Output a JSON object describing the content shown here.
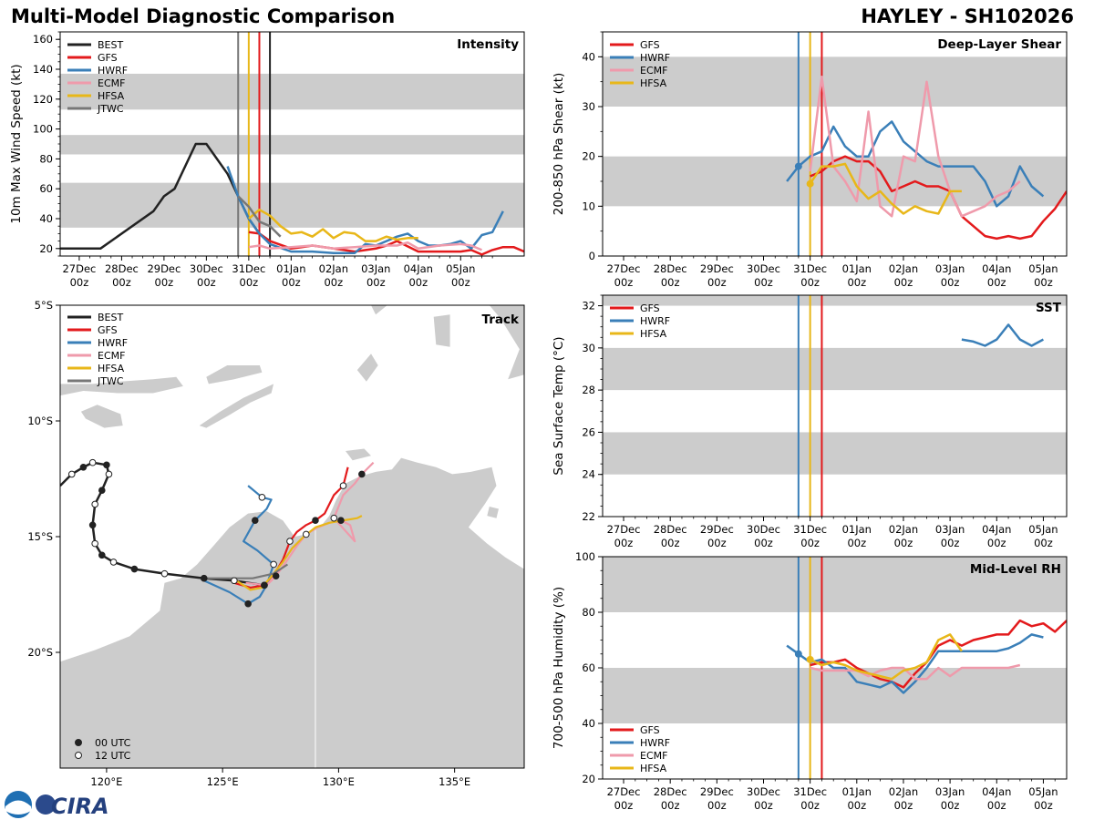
{
  "header": {
    "title": "Multi-Model Diagnostic Comparison",
    "storm": "HAYLEY - SH102026"
  },
  "colors": {
    "BEST": "#222222",
    "GFS": "#e31a1c",
    "HWRF": "#3a7fb8",
    "ECMF": "#ef9aab",
    "HFSA": "#e8b719",
    "JTWC": "#777777",
    "band": "#cccccc",
    "land": "#cccccc"
  },
  "time_ticks": [
    "27Dec\n00z",
    "28Dec\n00z",
    "29Dec\n00z",
    "30Dec\n00z",
    "31Dec\n00z",
    "01Jan\n00z",
    "02Jan\n00z",
    "03Jan\n00z",
    "04Jan\n00z",
    "05Jan\n00z"
  ],
  "chart_data": [
    {
      "id": "intensity",
      "type": "line",
      "title": "Intensity",
      "ylabel": "10m Max Wind Speed (kt)",
      "xlim": [
        -0.45,
        10.5
      ],
      "ylim": [
        15,
        165
      ],
      "yticks": [
        20,
        40,
        60,
        80,
        100,
        120,
        140,
        160
      ],
      "bands": [
        [
          34,
          64
        ],
        [
          83,
          96
        ],
        [
          113,
          137
        ]
      ],
      "vlines": [
        {
          "x": 3.75,
          "color": "#777777"
        },
        {
          "x": 4.0,
          "color": "#e8b719"
        },
        {
          "x": 4.25,
          "color": "#e31a1c"
        },
        {
          "x": 4.5,
          "color": "#222222"
        }
      ],
      "legend": [
        "BEST",
        "GFS",
        "HWRF",
        "ECMF",
        "HFSA",
        "JTWC"
      ],
      "series": [
        {
          "name": "BEST",
          "x": [
            -0.5,
            0.5,
            1.75,
            2,
            2.25,
            2.75,
            3,
            3.5,
            3.75,
            4,
            4.25,
            4.5
          ],
          "y": [
            20,
            20,
            45,
            55,
            60,
            90,
            90,
            70,
            55,
            40,
            30,
            25
          ]
        },
        {
          "name": "GFS",
          "x": [
            4,
            4.25,
            4.5,
            5,
            5.25,
            5.5,
            6,
            6.25,
            6.5,
            7,
            7.25,
            7.5,
            8,
            8.5,
            8.75,
            9,
            9.25,
            9.5,
            9.75,
            10,
            10.25,
            10.5
          ],
          "y": [
            31,
            30,
            25,
            20,
            21,
            22,
            20,
            19,
            18,
            20,
            22,
            25,
            18,
            18,
            18,
            18,
            19,
            16,
            19,
            21,
            21,
            18
          ]
        },
        {
          "name": "HWRF",
          "x": [
            3.5,
            3.75,
            4,
            4.25,
            4.5,
            5,
            5.5,
            6,
            6.25,
            6.5,
            6.75,
            7,
            7.25,
            7.5,
            7.75,
            8,
            8.25,
            8.5,
            8.75,
            9,
            9.25,
            9.5,
            9.75,
            10
          ],
          "y": [
            75,
            55,
            40,
            30,
            23,
            18,
            18,
            17,
            17,
            17,
            23,
            22,
            25,
            28,
            30,
            25,
            22,
            22,
            23,
            25,
            20,
            29,
            31,
            45
          ]
        },
        {
          "name": "ECMF",
          "x": [
            4,
            4.25,
            4.5,
            5,
            5.5,
            6,
            6.5,
            7,
            7.5,
            7.75,
            8,
            8.5,
            9,
            9.25,
            9.5
          ],
          "y": [
            21,
            22,
            20,
            21,
            22,
            20,
            21,
            22,
            22,
            24,
            20,
            22,
            23,
            22,
            19
          ]
        },
        {
          "name": "HFSA",
          "x": [
            4,
            4.25,
            4.5,
            4.75,
            5,
            5.25,
            5.5,
            5.75,
            6,
            6.25,
            6.5,
            6.75,
            7,
            7.25,
            7.5,
            7.75,
            8
          ],
          "y": [
            40,
            46,
            42,
            35,
            30,
            31,
            28,
            33,
            27,
            31,
            30,
            25,
            25,
            28,
            26,
            27,
            27
          ]
        },
        {
          "name": "JTWC",
          "x": [
            3.75,
            4,
            4.25,
            4.5,
            4.75
          ],
          "y": [
            55,
            48,
            38,
            35,
            28
          ]
        }
      ]
    },
    {
      "id": "shear",
      "type": "line",
      "title": "Deep-Layer Shear",
      "ylabel": "200-850 hPa Shear (kt)",
      "xlim": [
        -0.45,
        9.5
      ],
      "ylim": [
        0,
        45
      ],
      "yticks": [
        0,
        10,
        20,
        30,
        40
      ],
      "bands": [
        [
          10,
          20
        ],
        [
          30,
          40
        ]
      ],
      "vlines": [
        {
          "x": 3.75,
          "color": "#3a7fb8"
        },
        {
          "x": 4.0,
          "color": "#e8b719"
        },
        {
          "x": 4.25,
          "color": "#e31a1c"
        }
      ],
      "legend": [
        "GFS",
        "HWRF",
        "ECMF",
        "HFSA"
      ],
      "dots": [
        {
          "name": "HWRF",
          "x": 3.75,
          "y": 18
        },
        {
          "name": "HFSA",
          "x": 4.0,
          "y": 14.5
        }
      ],
      "series": [
        {
          "name": "GFS",
          "x": [
            4,
            4.25,
            4.5,
            4.75,
            5,
            5.25,
            5.5,
            5.75,
            6,
            6.25,
            6.5,
            6.75,
            7,
            7.25,
            7.5,
            7.75,
            8,
            8.25,
            8.5,
            8.75,
            9,
            9.25,
            9.5
          ],
          "y": [
            16,
            17,
            19,
            20,
            19,
            19,
            17,
            13,
            14,
            15,
            14,
            14,
            13,
            8,
            6,
            4,
            3.5,
            4,
            3.5,
            4,
            7,
            9.5,
            13
          ]
        },
        {
          "name": "HWRF",
          "x": [
            3.5,
            3.75,
            4,
            4.25,
            4.5,
            4.75,
            5,
            5.25,
            5.5,
            5.75,
            6,
            6.25,
            6.5,
            6.75,
            7,
            7.25,
            7.5,
            7.75,
            8,
            8.25,
            8.5,
            8.75,
            9
          ],
          "y": [
            15,
            18,
            20,
            21,
            26,
            22,
            20,
            20,
            25,
            27,
            23,
            21,
            19,
            18,
            18,
            18,
            18,
            15,
            10,
            12,
            18,
            14,
            12
          ]
        },
        {
          "name": "ECMF",
          "x": [
            4,
            4.25,
            4.5,
            4.75,
            5,
            5.25,
            5.5,
            5.75,
            6,
            6.25,
            6.5,
            6.75,
            7,
            7.25,
            7.5,
            7.75,
            8,
            8.25,
            8.5
          ],
          "y": [
            17,
            36,
            18,
            15,
            11,
            29,
            10,
            8,
            20,
            19,
            35,
            20,
            13,
            8,
            9,
            10,
            12,
            13,
            15
          ]
        },
        {
          "name": "HFSA",
          "x": [
            4,
            4.25,
            4.5,
            4.75,
            5,
            5.25,
            5.5,
            5.75,
            6,
            6.25,
            6.5,
            6.75,
            7,
            7.25
          ],
          "y": [
            14.5,
            18,
            18,
            18.5,
            14,
            11.5,
            13,
            10.5,
            8.5,
            10,
            9,
            8.5,
            13,
            13
          ]
        }
      ]
    },
    {
      "id": "sst",
      "type": "line",
      "title": "SST",
      "ylabel": "Sea Surface Temp (°C)",
      "xlim": [
        -0.45,
        9.5
      ],
      "ylim": [
        22,
        32.5
      ],
      "yticks": [
        22,
        24,
        26,
        28,
        30,
        32
      ],
      "bands": [
        [
          24,
          26
        ],
        [
          28,
          30
        ],
        [
          32,
          34
        ]
      ],
      "vlines": [
        {
          "x": 3.75,
          "color": "#3a7fb8"
        },
        {
          "x": 4.0,
          "color": "#e8b719"
        },
        {
          "x": 4.25,
          "color": "#e31a1c"
        }
      ],
      "legend": [
        "GFS",
        "HWRF",
        "HFSA"
      ],
      "dots": [],
      "series": [
        {
          "name": "HWRF",
          "x": [
            7.25,
            7.5,
            7.75,
            8,
            8.25,
            8.5,
            8.75,
            9
          ],
          "y": [
            30.4,
            30.3,
            30.1,
            30.4,
            31.1,
            30.4,
            30.1,
            30.4
          ]
        }
      ]
    },
    {
      "id": "rh",
      "type": "line",
      "title": "Mid-Level RH",
      "ylabel": "700-500 hPa Humidity (%)",
      "xlim": [
        -0.45,
        9.5
      ],
      "ylim": [
        20,
        100
      ],
      "yticks": [
        20,
        40,
        60,
        80,
        100
      ],
      "bands": [
        [
          40,
          60
        ],
        [
          80,
          100
        ]
      ],
      "vlines": [
        {
          "x": 3.75,
          "color": "#3a7fb8"
        },
        {
          "x": 4.0,
          "color": "#e8b719"
        },
        {
          "x": 4.25,
          "color": "#e31a1c"
        }
      ],
      "legend": [
        "GFS",
        "HWRF",
        "ECMF",
        "HFSA"
      ],
      "dots": [
        {
          "name": "HWRF",
          "x": 3.75,
          "y": 65
        },
        {
          "name": "HFSA",
          "x": 4.0,
          "y": 63
        }
      ],
      "series": [
        {
          "name": "GFS",
          "x": [
            4,
            4.25,
            4.5,
            4.75,
            5,
            5.25,
            5.5,
            5.75,
            6,
            6.25,
            6.5,
            6.75,
            7,
            7.25,
            7.5,
            7.75,
            8,
            8.25,
            8.5,
            8.75,
            9,
            9.25,
            9.5
          ],
          "y": [
            61,
            62,
            62,
            63,
            60,
            58,
            56,
            55,
            53,
            58,
            62,
            68,
            70,
            68,
            70,
            71,
            72,
            72,
            77,
            75,
            76,
            73,
            77
          ]
        },
        {
          "name": "HWRF",
          "x": [
            3.5,
            3.75,
            4,
            4.25,
            4.5,
            4.75,
            5,
            5.25,
            5.5,
            5.75,
            6,
            6.25,
            6.5,
            6.75,
            7,
            7.25,
            7.5,
            7.75,
            8,
            8.25,
            8.5,
            8.75,
            9
          ],
          "y": [
            68,
            65,
            62,
            63,
            60,
            60,
            55,
            54,
            53,
            55,
            51,
            55,
            60,
            66,
            66,
            66,
            66,
            66,
            66,
            67,
            69,
            72,
            71
          ]
        },
        {
          "name": "ECMF",
          "x": [
            4,
            4.25,
            4.5,
            4.75,
            5,
            5.25,
            5.5,
            5.75,
            6,
            6.25,
            6.5,
            6.75,
            7,
            7.25,
            7.5,
            7.75,
            8,
            8.25,
            8.5
          ],
          "y": [
            60,
            59,
            59,
            59,
            59,
            57,
            59,
            60,
            60,
            56,
            56,
            60,
            57,
            60,
            60,
            60,
            60,
            60,
            61
          ]
        },
        {
          "name": "HFSA",
          "x": [
            4,
            4.25,
            4.5,
            4.75,
            5,
            5.25,
            5.5,
            5.75,
            6,
            6.25,
            6.5,
            6.75,
            7,
            7.25
          ],
          "y": [
            63,
            61,
            62,
            61,
            59,
            58,
            57,
            56,
            59,
            60,
            62,
            70,
            72,
            66
          ]
        }
      ]
    },
    {
      "id": "track",
      "type": "scatter",
      "title": "Track",
      "xlim": [
        118,
        138
      ],
      "ylim": [
        -25,
        -5
      ],
      "xticks": [
        120,
        125,
        130,
        135
      ],
      "xticklabels": [
        "120°E",
        "125°E",
        "130°E",
        "135°E"
      ],
      "yticks": [
        -5,
        -10,
        -15,
        -20
      ],
      "yticklabels": [
        "5°S",
        "10°S",
        "15°S",
        "20°S"
      ],
      "legend": [
        "BEST",
        "GFS",
        "HWRF",
        "ECMF",
        "HFSA",
        "JTWC"
      ],
      "marker_legend": [
        "00 UTC",
        "12 UTC"
      ],
      "series": [
        {
          "name": "BEST",
          "lon": [
            118,
            118.5,
            119,
            119.4,
            120,
            120.1,
            119.8,
            119.5,
            119.4,
            119.5,
            119.8,
            120.3,
            121.2,
            122.5,
            124.2,
            125.5,
            126.8
          ],
          "lat": [
            -12.8,
            -12.3,
            -12,
            -11.8,
            -11.9,
            -12.3,
            -13,
            -13.6,
            -14.5,
            -15.3,
            -15.8,
            -16.1,
            -16.4,
            -16.6,
            -16.8,
            -16.9,
            -17.1
          ]
        },
        {
          "name": "GFS",
          "lon": [
            125.5,
            126.2,
            126.8,
            127.3,
            127.6,
            127.9,
            128.2,
            128.6,
            129,
            129.4,
            129.8,
            130.2,
            130.4
          ],
          "lat": [
            -17,
            -17.2,
            -17.1,
            -16.5,
            -16,
            -15.2,
            -14.8,
            -14.5,
            -14.3,
            -14,
            -13.2,
            -12.8,
            -12
          ]
        },
        {
          "name": "HWRF",
          "lon": [
            124.2,
            125.3,
            126.1,
            126.6,
            126.9,
            127.2,
            126.5,
            125.9,
            126.4,
            126.9,
            127.1,
            126.7,
            126.1
          ],
          "lat": [
            -16.9,
            -17.4,
            -17.9,
            -17.6,
            -17.1,
            -16.2,
            -15.6,
            -15.2,
            -14.3,
            -13.8,
            -13.4,
            -13.3,
            -12.8
          ]
        },
        {
          "name": "ECMF",
          "lon": [
            126,
            126.9,
            127.3,
            127.8,
            128.2,
            128.6,
            129.1,
            129.6,
            130.1,
            130.5,
            130.7,
            129.8,
            130.2,
            130.7,
            131,
            131.5
          ],
          "lat": [
            -17,
            -17.1,
            -16.7,
            -16,
            -15.4,
            -14.9,
            -14.6,
            -14.4,
            -14.3,
            -14.5,
            -15.2,
            -14.2,
            -13.2,
            -12.7,
            -12.3,
            -11.8
          ]
        },
        {
          "name": "HFSA",
          "lon": [
            125.6,
            126.2,
            126.7,
            127.2,
            127.6,
            128,
            128.5,
            129,
            129.6,
            130.2,
            130.8,
            131
          ],
          "lat": [
            -16.9,
            -17.3,
            -17.2,
            -16.6,
            -16.1,
            -15.5,
            -15,
            -14.6,
            -14.4,
            -14.3,
            -14.2,
            -14.1
          ]
        },
        {
          "name": "JTWC",
          "lon": [
            124.2,
            125.3,
            126.3,
            127.2,
            127.8
          ],
          "lat": [
            -16.8,
            -16.8,
            -16.8,
            -16.6,
            -16.2
          ]
        }
      ]
    }
  ],
  "footer": {
    "logo_text": "CIRA"
  }
}
